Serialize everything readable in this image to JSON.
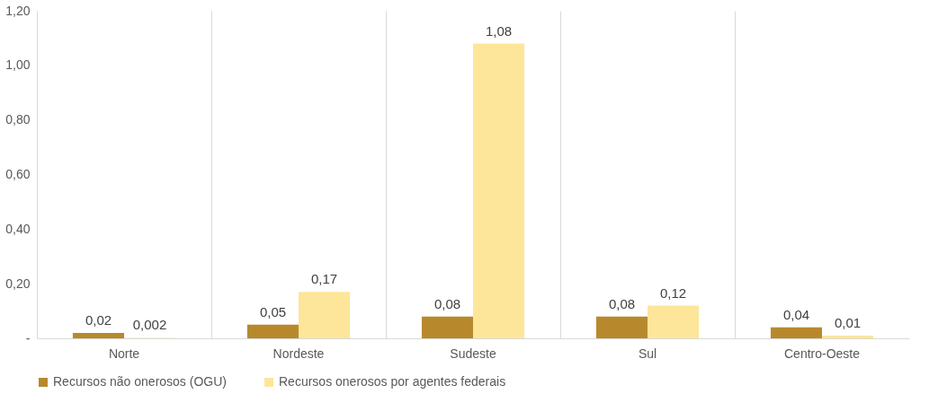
{
  "chart_data": {
    "type": "bar",
    "categories": [
      "Norte",
      "Nordeste",
      "Sudeste",
      "Sul",
      "Centro-Oeste"
    ],
    "series": [
      {
        "name": "Recursos não onerosos (OGU)",
        "color": "#b8892c",
        "values": [
          0.02,
          0.05,
          0.08,
          0.08,
          0.04
        ],
        "value_labels": [
          "0,02",
          "0,05",
          "0,08",
          "0,08",
          "0,04"
        ]
      },
      {
        "name": "Recursos onerosos por agentes federais",
        "color": "#fde699",
        "values": [
          0.002,
          0.17,
          1.08,
          0.12,
          0.01
        ],
        "value_labels": [
          "0,002",
          "0,17",
          "1,08",
          "0,12",
          "0,01"
        ]
      }
    ],
    "ylim": [
      0,
      1.2
    ],
    "yticks": [
      {
        "value": 0,
        "label": "-"
      },
      {
        "value": 0.2,
        "label": "0,20"
      },
      {
        "value": 0.4,
        "label": "0,40"
      },
      {
        "value": 0.6,
        "label": "0,60"
      },
      {
        "value": 0.8,
        "label": "0,80"
      },
      {
        "value": 1.0,
        "label": "1,00"
      },
      {
        "value": 1.2,
        "label": "1,20"
      }
    ],
    "grid": "x",
    "legend": "bottom"
  }
}
